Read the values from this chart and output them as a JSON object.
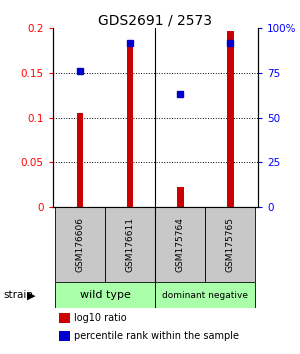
{
  "title": "GDS2691 / 2573",
  "samples": [
    "GSM176606",
    "GSM176611",
    "GSM175764",
    "GSM175765"
  ],
  "log10_ratio": [
    0.105,
    0.182,
    0.022,
    0.197
  ],
  "percentile_rank": [
    76,
    92,
    63,
    92
  ],
  "groups": [
    {
      "label": "wild type",
      "indices": [
        0,
        1
      ],
      "color": "#aaffaa"
    },
    {
      "label": "dominant negative",
      "indices": [
        2,
        3
      ],
      "color": "#aaffaa"
    }
  ],
  "bar_color": "#cc0000",
  "dot_color": "#0000cc",
  "left_ylim": [
    0,
    0.2
  ],
  "right_ylim": [
    0,
    100
  ],
  "left_yticks": [
    0,
    0.05,
    0.1,
    0.15,
    0.2
  ],
  "left_yticklabels": [
    "0",
    "0.05",
    "0.1",
    "0.15",
    "0.2"
  ],
  "right_yticks": [
    0,
    25,
    50,
    75,
    100
  ],
  "right_yticklabels": [
    "0",
    "25",
    "50",
    "75",
    "100%"
  ],
  "grid_values": [
    0.05,
    0.1,
    0.15
  ],
  "background_color": "#ffffff",
  "bar_width": 0.13,
  "dot_size": 5,
  "legend_items": [
    {
      "color": "#cc0000",
      "label": "log10 ratio"
    },
    {
      "color": "#0000cc",
      "label": "percentile rank within the sample"
    }
  ],
  "group_label_fontsize": 8,
  "sample_label_fontsize": 6.5,
  "title_fontsize": 10,
  "gray_box_color": "#c8c8c8"
}
